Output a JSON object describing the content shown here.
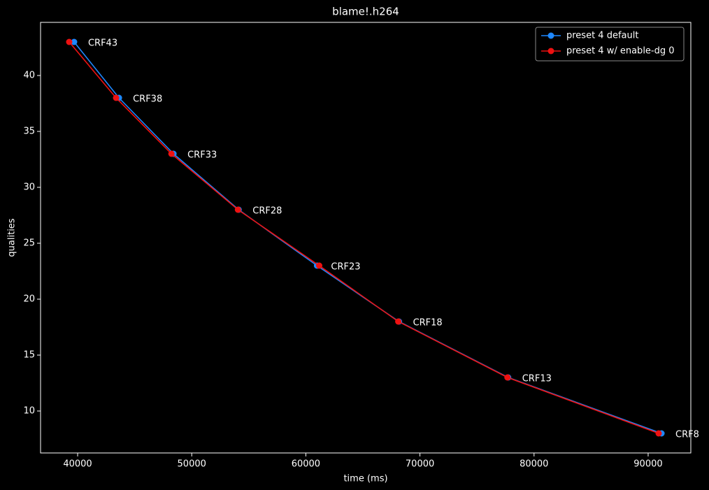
{
  "chart_data": {
    "type": "line",
    "title": "blame!.h264",
    "x_label": "time (ms)",
    "y_label": "qualities",
    "xlim": [
      36750,
      93740
    ],
    "ylim": [
      6.25,
      44.75
    ],
    "xticks": [
      40000,
      50000,
      60000,
      70000,
      80000,
      90000
    ],
    "yticks": [
      10,
      15,
      20,
      25,
      30,
      35,
      40
    ],
    "legend": "upper right",
    "series": [
      {
        "name": "preset 4 default",
        "color": "#1e88ff",
        "x": [
          39690,
          43620,
          48400,
          54110,
          60980,
          68160,
          77730,
          91170
        ],
        "values": [
          43,
          38,
          33,
          28,
          23,
          18,
          13,
          8
        ]
      },
      {
        "name": "preset 4 w/ enable-dg 0",
        "color": "#ee1111",
        "x": [
          39260,
          43370,
          48220,
          54050,
          61170,
          68100,
          77670,
          90920
        ],
        "values": [
          43,
          38,
          33,
          28,
          23,
          18,
          13,
          8
        ]
      }
    ],
    "annotations": [
      "CRF43",
      "CRF38",
      "CRF33",
      "CRF28",
      "CRF23",
      "CRF18",
      "CRF13",
      "CRF8"
    ]
  }
}
